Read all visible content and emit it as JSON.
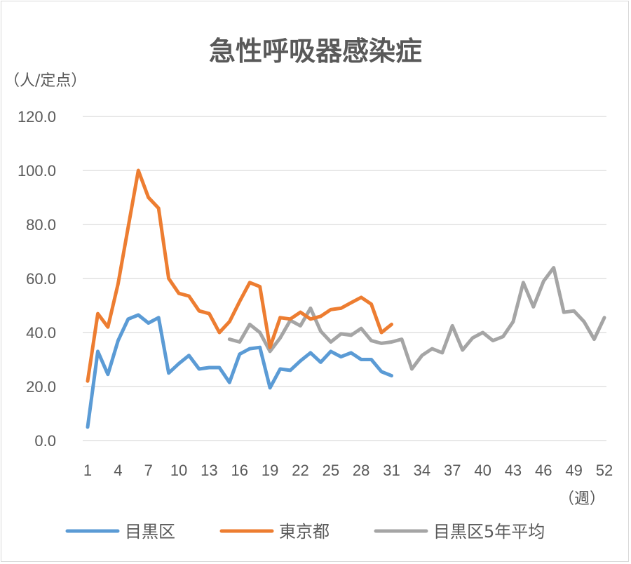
{
  "chart_data": {
    "type": "line",
    "title": "急性呼吸器感染症",
    "ylabel": "（人/定点）",
    "xlabel": "（週）",
    "ylim": [
      0,
      120
    ],
    "yticks": [
      "0.0",
      "20.0",
      "40.0",
      "60.0",
      "80.0",
      "100.0",
      "120.0"
    ],
    "xlim": [
      1,
      52
    ],
    "xticks": [
      "1",
      "4",
      "7",
      "10",
      "13",
      "16",
      "19",
      "22",
      "25",
      "28",
      "31",
      "34",
      "37",
      "40",
      "43",
      "46",
      "49",
      "52"
    ],
    "grid": true,
    "legend_position": "bottom",
    "series": [
      {
        "name": "目黒区",
        "color": "#5b9bd5",
        "x": [
          1,
          2,
          3,
          4,
          5,
          6,
          7,
          8,
          9,
          10,
          11,
          12,
          13,
          14,
          15,
          16,
          17,
          18,
          19,
          20,
          21,
          22,
          23,
          24,
          25,
          26,
          27,
          28,
          29,
          30,
          31
        ],
        "values": [
          5.0,
          33.0,
          24.5,
          37.0,
          45.0,
          46.5,
          43.5,
          45.5,
          25.0,
          28.5,
          31.5,
          26.5,
          27.0,
          27.0,
          21.5,
          32.0,
          34.0,
          34.5,
          19.5,
          26.5,
          26.0,
          29.5,
          32.5,
          29.0,
          33.0,
          31.0,
          32.5,
          30.0,
          30.0,
          25.5,
          24.0
        ]
      },
      {
        "name": "東京都",
        "color": "#ed7d31",
        "x": [
          1,
          2,
          3,
          4,
          5,
          6,
          7,
          8,
          9,
          10,
          11,
          12,
          13,
          14,
          15,
          16,
          17,
          18,
          19,
          20,
          21,
          22,
          23,
          24,
          25,
          26,
          27,
          28,
          29,
          30,
          31
        ],
        "values": [
          22.0,
          47.0,
          42.0,
          58.0,
          79.0,
          100.0,
          90.0,
          86.0,
          60.0,
          54.5,
          53.5,
          48.0,
          47.0,
          40.0,
          44.0,
          51.5,
          58.5,
          57.0,
          34.5,
          45.5,
          45.0,
          47.5,
          45.0,
          46.0,
          48.5,
          49.0,
          51.0,
          53.0,
          50.5,
          40.0,
          43.0
        ]
      },
      {
        "name": "目黒区5年平均",
        "color": "#a5a5a5",
        "x": [
          15,
          16,
          17,
          18,
          19,
          20,
          21,
          22,
          23,
          24,
          25,
          26,
          27,
          28,
          29,
          30,
          31,
          32,
          33,
          34,
          35,
          36,
          37,
          38,
          39,
          40,
          41,
          42,
          43,
          44,
          45,
          46,
          47,
          48,
          49,
          50,
          51,
          52
        ],
        "values": [
          37.5,
          36.5,
          43.0,
          40.0,
          33.0,
          38.0,
          44.5,
          42.5,
          49.0,
          40.5,
          36.5,
          39.5,
          39.0,
          41.5,
          37.0,
          36.0,
          36.5,
          37.5,
          26.5,
          31.5,
          34.0,
          32.5,
          42.5,
          33.5,
          38.0,
          40.0,
          37.0,
          38.5,
          44.0,
          58.5,
          49.5,
          59.0,
          64.0,
          47.5,
          48.0,
          44.0,
          37.5,
          45.5
        ]
      }
    ]
  }
}
